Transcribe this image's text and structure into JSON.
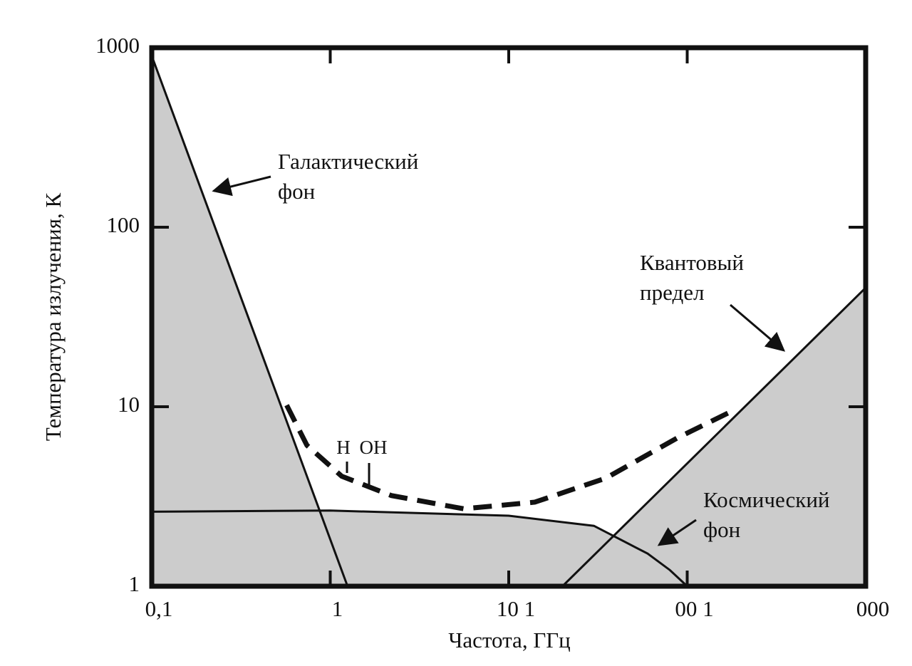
{
  "chart_data": {
    "type": "line",
    "xlabel": "Частота, ГГц",
    "ylabel": "Температура излучения, К",
    "xscale": "log",
    "yscale": "log",
    "xlim": [
      0.1,
      1000
    ],
    "ylim": [
      1,
      1000
    ],
    "xticks": [
      {
        "value": 0.1,
        "label": "0,1"
      },
      1,
      {
        "value": 10,
        "label": "10 1"
      },
      {
        "value": 100,
        "label": "00 1"
      },
      {
        "value": 1000,
        "label": "000"
      }
    ],
    "yticks": [
      1,
      10,
      100,
      1000
    ],
    "series": [
      {
        "color": "#111111",
        "fill": "#cccccc",
        "x": [
          0.1,
          1.25
        ],
        "values": [
          900,
          1
        ]
      },
      {
        "color": "#111111",
        "fill": "#cccccc",
        "x": [
          0.1,
          1,
          10,
          30,
          60,
          80,
          100
        ],
        "values": [
          2.6,
          2.64,
          2.47,
          2.17,
          1.52,
          1.23,
          1
        ]
      },
      {
        "color": "#111111",
        "fill": "#cccccc",
        "x": [
          20,
          1000
        ],
        "values": [
          1,
          46
        ]
      },
      {
        "color": "#111111",
        "dash": true,
        "x": [
          0.57,
          0.74,
          1.16,
          2.2,
          5.6,
          14,
          35,
          88,
          184
        ],
        "values": [
          10.2,
          6.1,
          4.1,
          3.2,
          2.7,
          2.94,
          4.0,
          6.7,
          9.6
        ]
      }
    ],
    "annotations": [
      {
        "lines": [
          "Галактический",
          "фон"
        ]
      },
      {
        "lines": [
          "Квантовый",
          "предел"
        ]
      },
      {
        "lines": [
          "Космический",
          "фон"
        ]
      },
      {
        "lines": [
          "H"
        ]
      },
      {
        "lines": [
          "OH"
        ]
      }
    ]
  }
}
